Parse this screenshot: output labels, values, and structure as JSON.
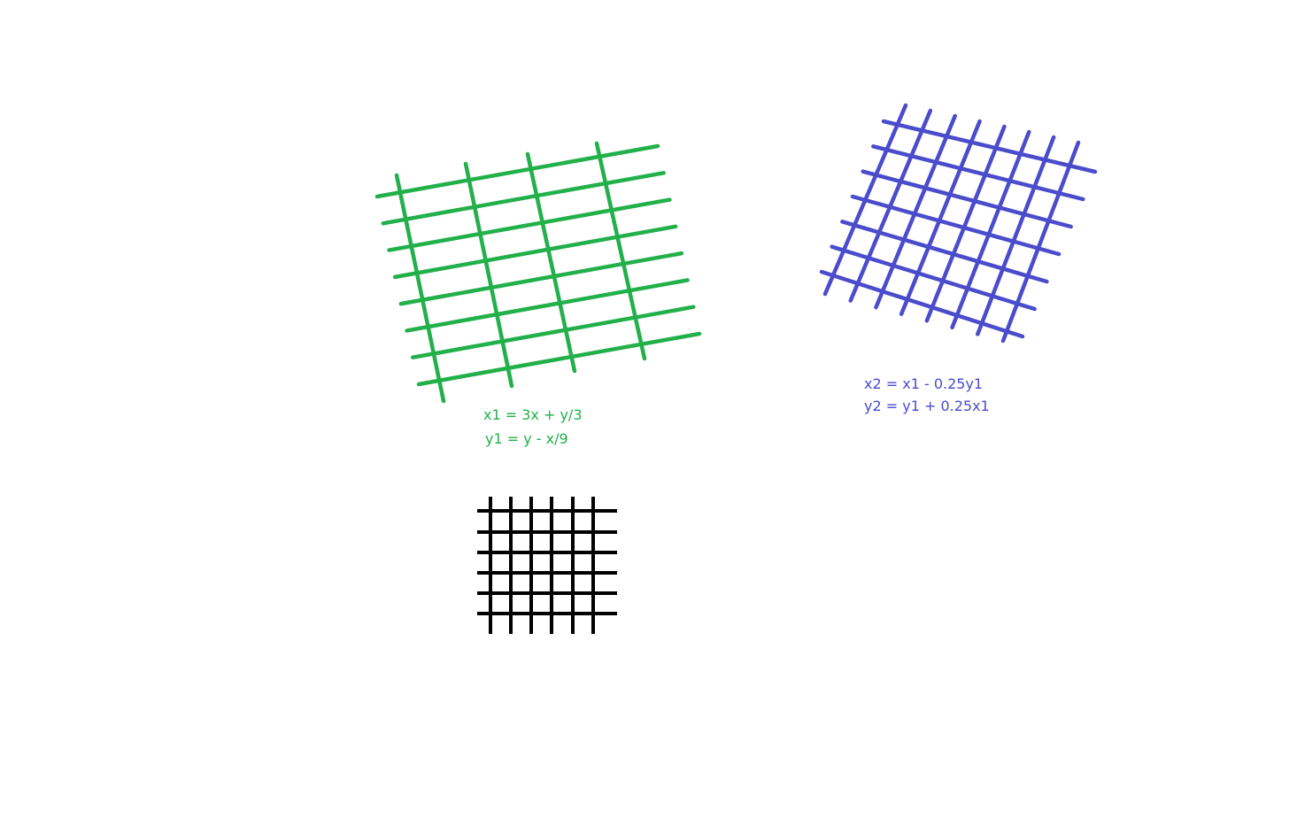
{
  "colors": {
    "background": "#ffffff",
    "original_grid": "#000000",
    "first_transform": "#22b04a",
    "second_transform": "#4a4ccc"
  },
  "grids": {
    "original": {
      "name": "original-grid",
      "color_key": "original_grid"
    },
    "first": {
      "name": "first-transformed-grid",
      "color_key": "first_transform"
    },
    "second": {
      "name": "second-transformed-grid",
      "color_key": "second_transform"
    }
  },
  "equations": {
    "first": {
      "line1": "x1 = 3x + y/3",
      "line2": "y1 = y - x/9"
    },
    "second": {
      "line1": "x2 = x1 - 0.25y1",
      "line2": "y2 = y1 + 0.25x1"
    }
  }
}
